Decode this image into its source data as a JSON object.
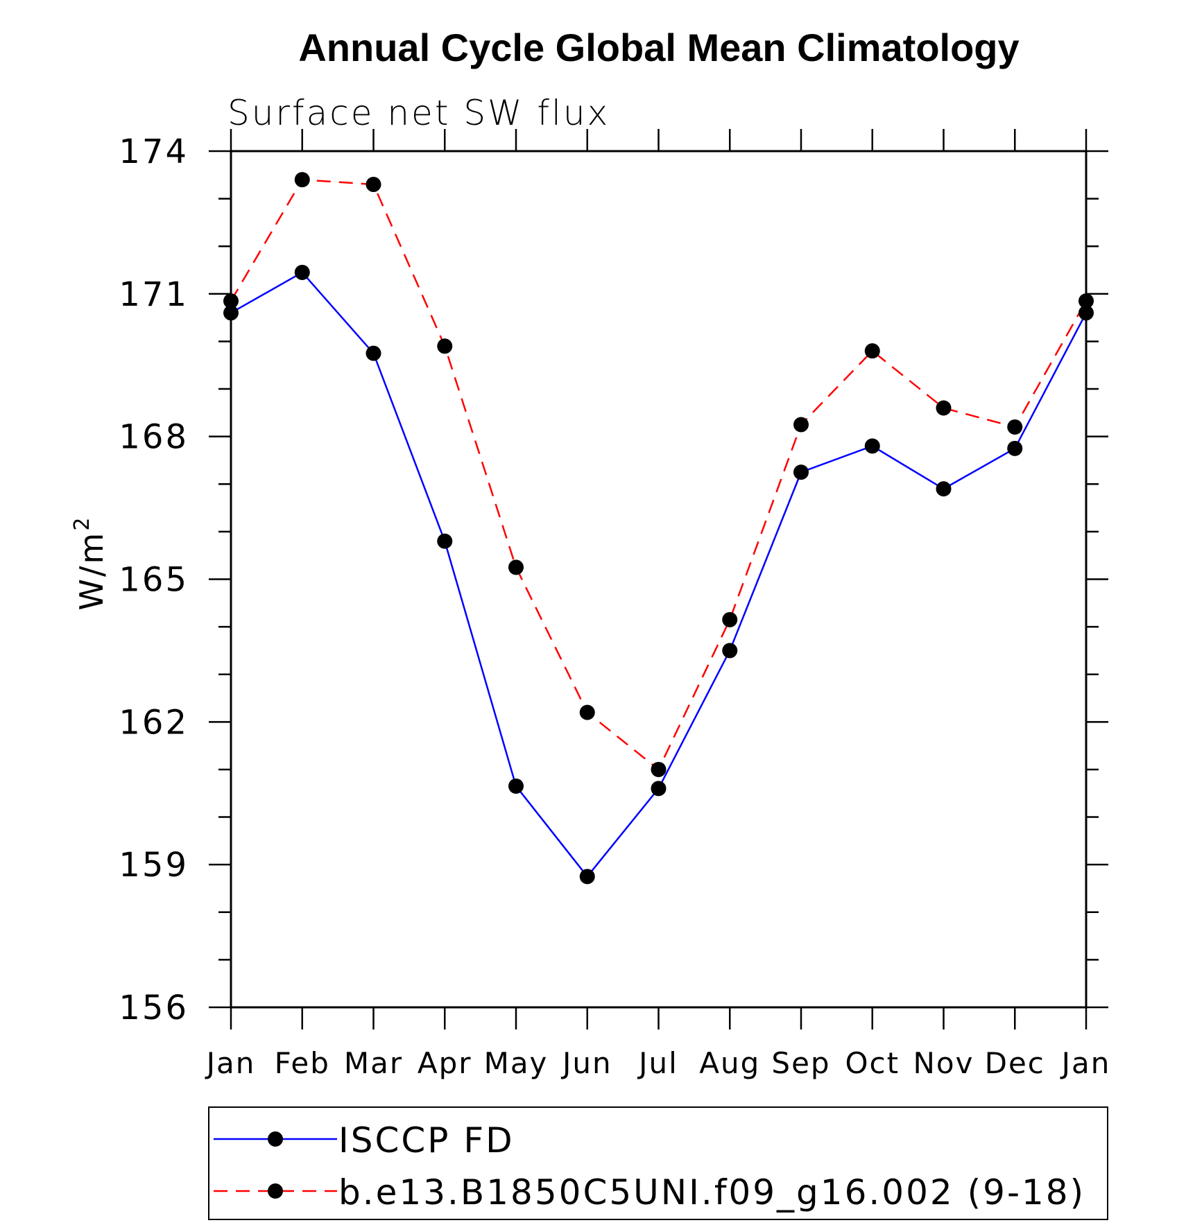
{
  "chart_data": {
    "type": "line",
    "title": "Annual Cycle Global Mean Climatology",
    "subtitle": "Surface net SW flux",
    "ylabel": "W/m",
    "ylabel_superscript": "2",
    "xlabel": "",
    "categories": [
      "Jan",
      "Feb",
      "Mar",
      "Apr",
      "May",
      "Jun",
      "Jul",
      "Aug",
      "Sep",
      "Oct",
      "Nov",
      "Dec",
      "Jan"
    ],
    "ylim": [
      156,
      174
    ],
    "yticks": [
      156,
      159,
      162,
      165,
      168,
      171,
      174
    ],
    "yminor_step": 1,
    "grid": false,
    "legend_position": "bottom",
    "series": [
      {
        "name": "ISCCP FD",
        "color": "#0000ff",
        "dash": "solid",
        "marker": "filled-circle",
        "values": [
          170.6,
          171.45,
          169.75,
          165.8,
          160.65,
          158.75,
          160.6,
          163.5,
          167.25,
          167.8,
          166.9,
          167.75,
          170.6
        ]
      },
      {
        "name": "b.e13.B1850C5UNI.f09_g16.002 (9-18)",
        "color": "#ff0000",
        "dash": "dashed",
        "marker": "filled-circle",
        "values": [
          170.85,
          173.4,
          173.3,
          169.9,
          165.25,
          162.2,
          161.0,
          164.15,
          168.25,
          169.8,
          168.6,
          168.2,
          170.85
        ]
      }
    ]
  }
}
